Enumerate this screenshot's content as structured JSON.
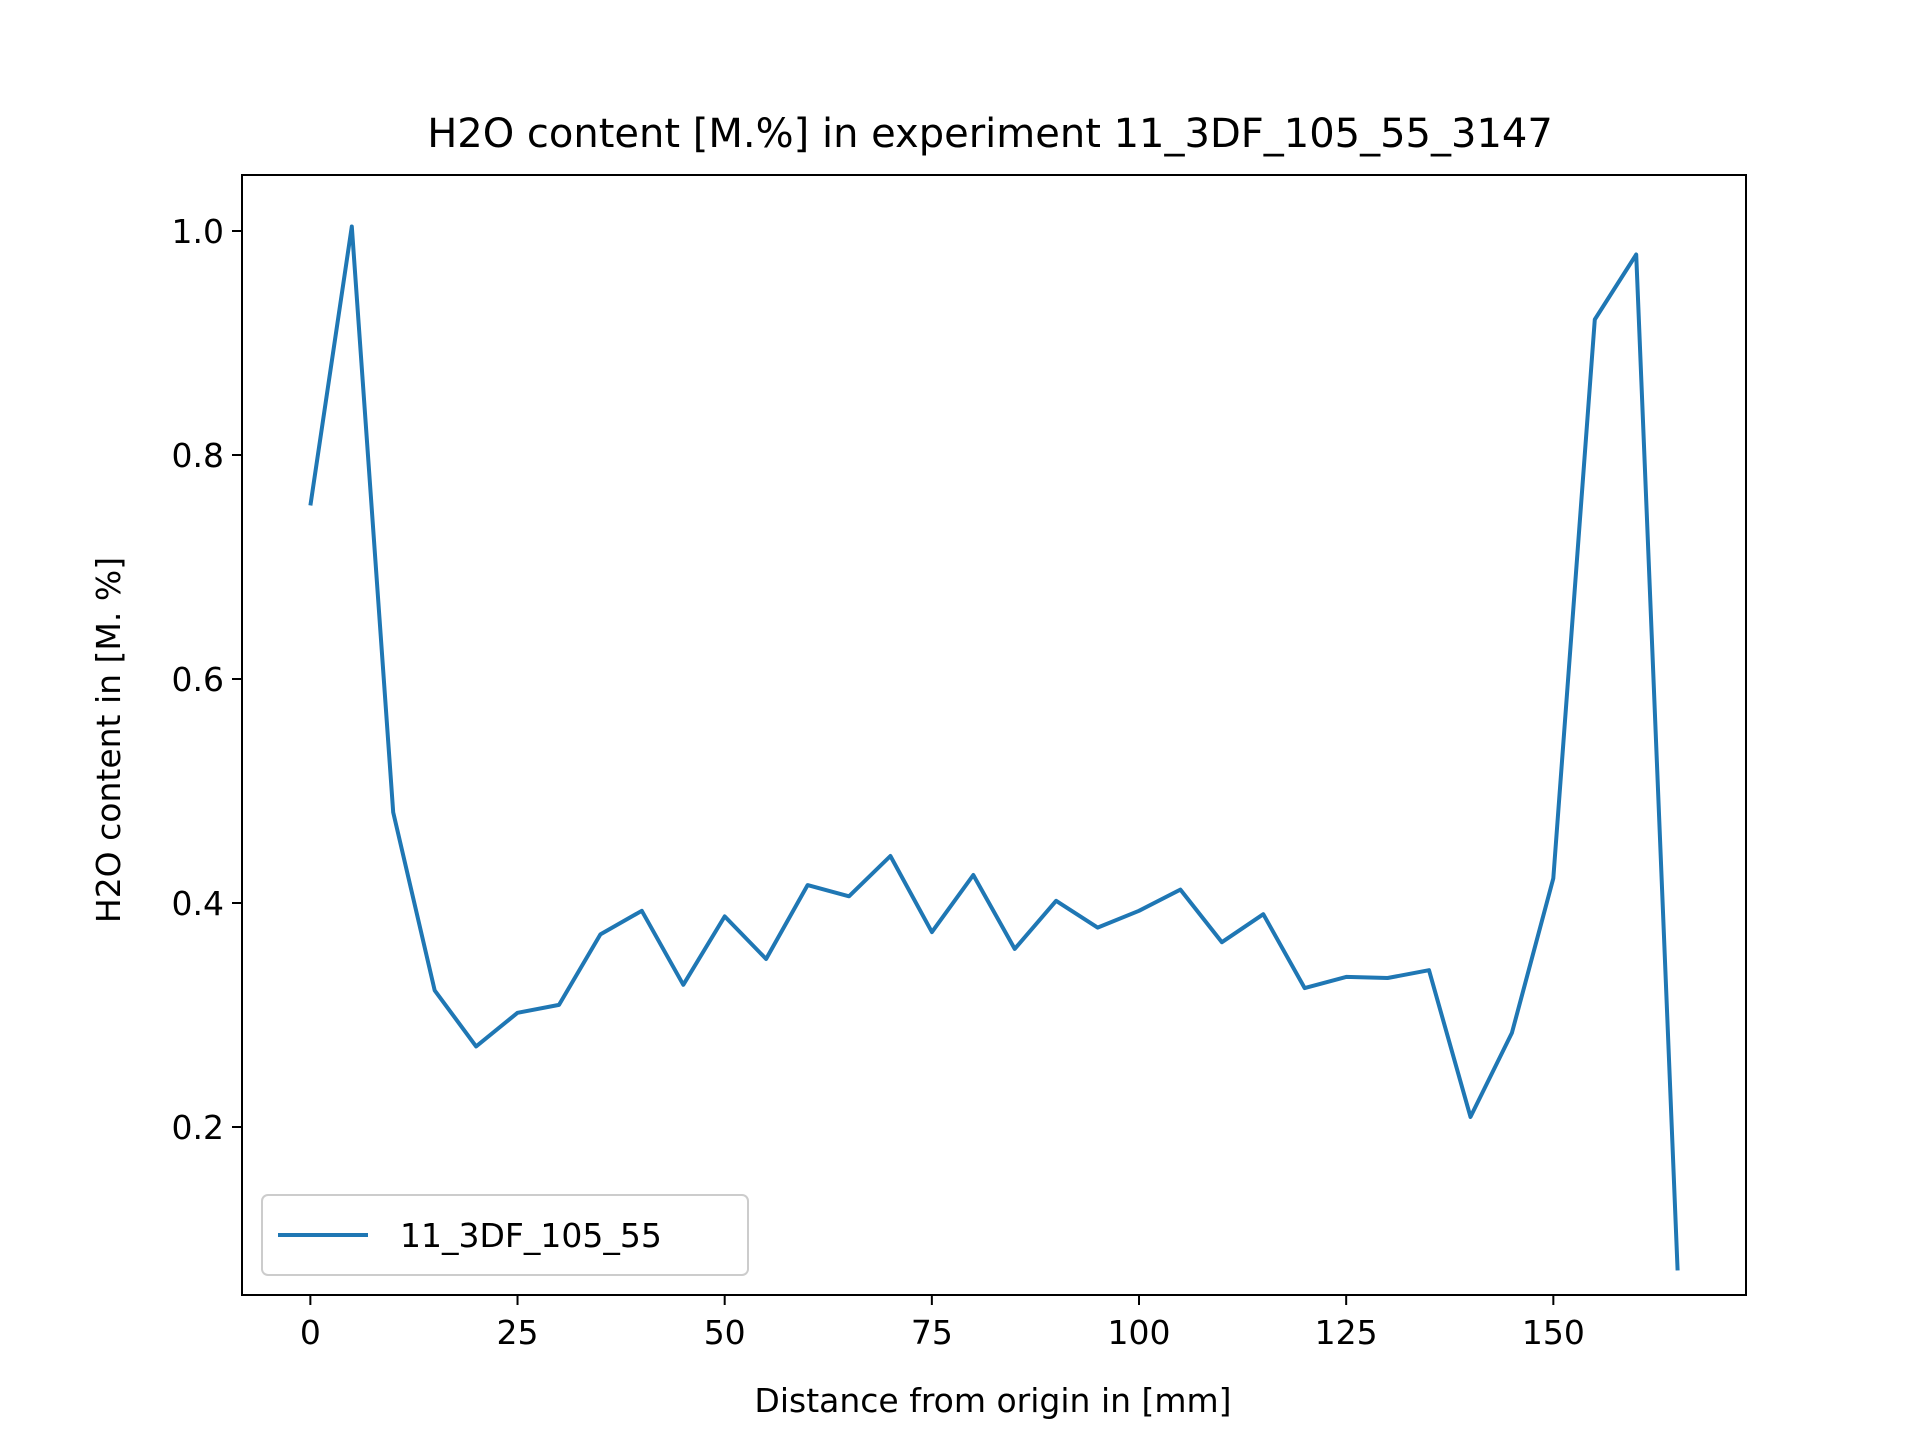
{
  "chart_data": {
    "type": "line",
    "title": "H2O content [M.%] in experiment 11_3DF_105_55_3147",
    "xlabel": "Distance from origin in [mm]",
    "ylabel": "H2O content in [M. %]",
    "xlim": [
      -8.25,
      173.25
    ],
    "ylim": [
      0.05,
      1.05
    ],
    "xticks": [
      0,
      25,
      50,
      75,
      100,
      125,
      150
    ],
    "xtick_labels": [
      "0",
      "25",
      "50",
      "75",
      "100",
      "125",
      "150"
    ],
    "yticks": [
      0.2,
      0.4,
      0.6,
      0.8,
      1.0
    ],
    "ytick_labels": [
      "0.2",
      "0.4",
      "0.6",
      "0.8",
      "1.0"
    ],
    "grid": false,
    "legend_position": "lower-left",
    "series": [
      {
        "name": "11_3DF_105_55",
        "color": "#1f77b4",
        "x": [
          0,
          5,
          10,
          15,
          20,
          25,
          30,
          35,
          40,
          45,
          50,
          55,
          60,
          65,
          70,
          75,
          80,
          85,
          90,
          95,
          100,
          105,
          110,
          115,
          120,
          125,
          130,
          135,
          140,
          145,
          150,
          155,
          160,
          165
        ],
        "y": [
          0.755,
          1.004,
          0.481,
          0.322,
          0.272,
          0.302,
          0.309,
          0.372,
          0.393,
          0.327,
          0.388,
          0.35,
          0.416,
          0.406,
          0.442,
          0.374,
          0.425,
          0.359,
          0.402,
          0.378,
          0.393,
          0.412,
          0.365,
          0.39,
          0.324,
          0.334,
          0.333,
          0.34,
          0.209,
          0.284,
          0.422,
          0.921,
          0.979,
          0.072
        ]
      }
    ]
  }
}
